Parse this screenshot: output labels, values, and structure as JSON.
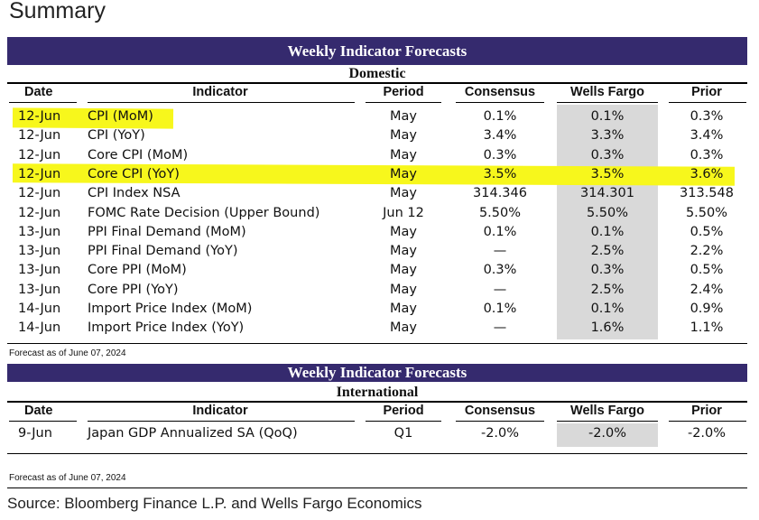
{
  "page_title": "Summary",
  "columns": {
    "date": "Date",
    "indicator": "Indicator",
    "period": "Period",
    "consensus": "Consensus",
    "wells_fargo": "Wells Fargo",
    "prior": "Prior"
  },
  "domestic": {
    "banner": "Weekly Indicator Forecasts",
    "section": "Domestic",
    "highlighted_rows": [
      0,
      3
    ],
    "rows": [
      {
        "date": "12-Jun",
        "indicator": "CPI (MoM)",
        "period": "May",
        "consensus": "0.1%",
        "wells_fargo": "0.1%",
        "prior": "0.3%"
      },
      {
        "date": "12-Jun",
        "indicator": "CPI (YoY)",
        "period": "May",
        "consensus": "3.4%",
        "wells_fargo": "3.3%",
        "prior": "3.4%"
      },
      {
        "date": "12-Jun",
        "indicator": "Core CPI (MoM)",
        "period": "May",
        "consensus": "0.3%",
        "wells_fargo": "0.3%",
        "prior": "0.3%"
      },
      {
        "date": "12-Jun",
        "indicator": "Core CPI (YoY)",
        "period": "May",
        "consensus": "3.5%",
        "wells_fargo": "3.5%",
        "prior": "3.6%"
      },
      {
        "date": "12-Jun",
        "indicator": "CPI Index NSA",
        "period": "May",
        "consensus": "314.346",
        "wells_fargo": "314.301",
        "prior": "313.548"
      },
      {
        "date": "12-Jun",
        "indicator": "FOMC Rate Decision (Upper Bound)",
        "period": "Jun 12",
        "consensus": "5.50%",
        "wells_fargo": "5.50%",
        "prior": "5.50%"
      },
      {
        "date": "13-Jun",
        "indicator": "PPI Final Demand (MoM)",
        "period": "May",
        "consensus": "0.1%",
        "wells_fargo": "0.1%",
        "prior": "0.5%"
      },
      {
        "date": "13-Jun",
        "indicator": "PPI Final Demand (YoY)",
        "period": "May",
        "consensus": "—",
        "wells_fargo": "2.5%",
        "prior": "2.2%"
      },
      {
        "date": "13-Jun",
        "indicator": "Core PPI (MoM)",
        "period": "May",
        "consensus": "0.3%",
        "wells_fargo": "0.3%",
        "prior": "0.5%"
      },
      {
        "date": "13-Jun",
        "indicator": "Core PPI (YoY)",
        "period": "May",
        "consensus": "—",
        "wells_fargo": "2.5%",
        "prior": "2.4%"
      },
      {
        "date": "14-Jun",
        "indicator": "Import Price Index (MoM)",
        "period": "May",
        "consensus": "0.1%",
        "wells_fargo": "0.1%",
        "prior": "0.9%"
      },
      {
        "date": "14-Jun",
        "indicator": "Import Price Index (YoY)",
        "period": "May",
        "consensus": "—",
        "wells_fargo": "1.6%",
        "prior": "1.1%"
      }
    ],
    "note": "Forecast as of June 07, 2024"
  },
  "international": {
    "banner": "Weekly Indicator Forecasts",
    "section": "International",
    "rows": [
      {
        "date": "9-Jun",
        "indicator": "Japan GDP Annualized SA (QoQ)",
        "period": "Q1",
        "consensus": "-2.0%",
        "wells_fargo": "-2.0%",
        "prior": "-2.0%"
      }
    ],
    "note": "Forecast as of June 07, 2024"
  },
  "source": "Source: Bloomberg Finance L.P. and Wells Fargo Economics",
  "colors": {
    "banner": "#352a6e",
    "highlight": "#f7f71c",
    "wells_fargo_column": "#d9d9d9"
  }
}
